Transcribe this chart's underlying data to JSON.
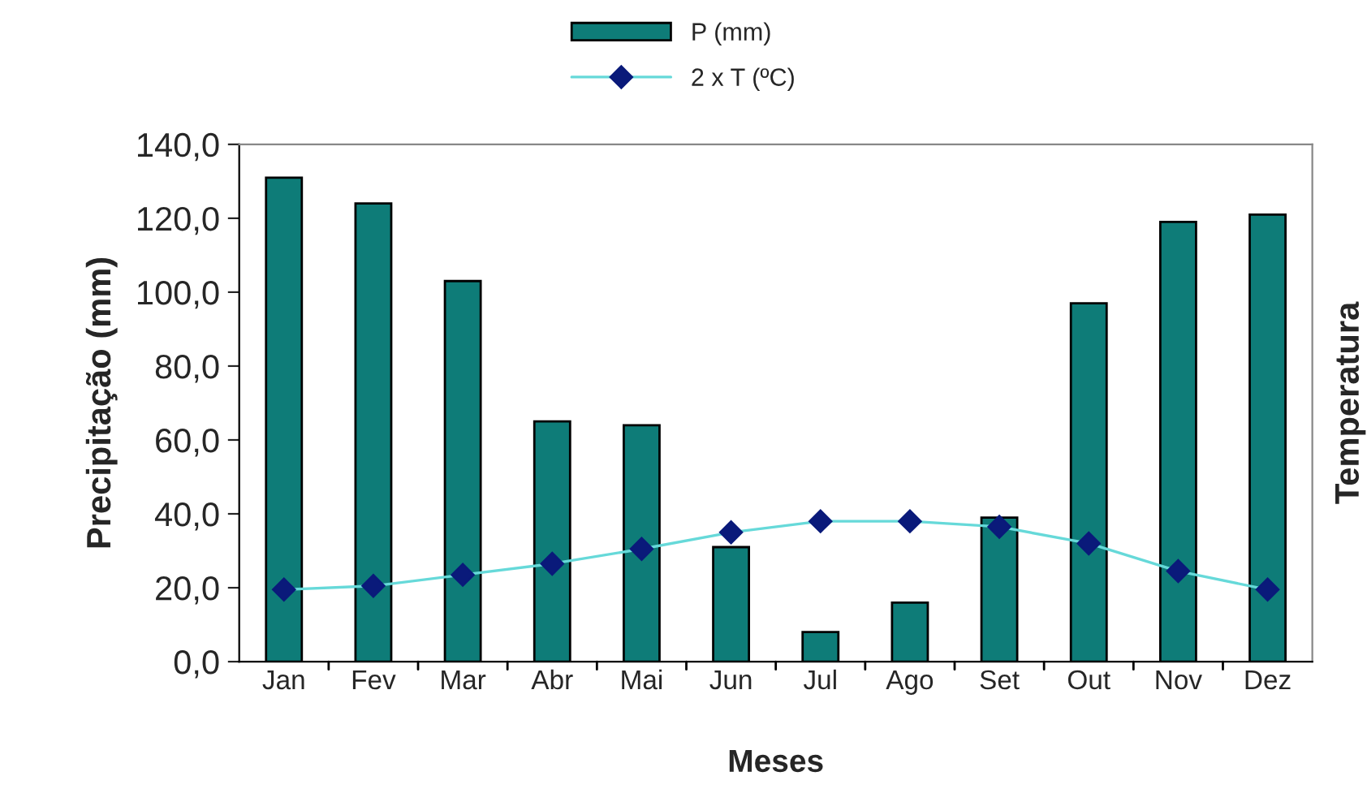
{
  "chart_data": {
    "type": "bar",
    "xlabel": "Meses",
    "ylabel": "Precipitação (mm)",
    "y2label": "Temperatura",
    "categories": [
      "Jan",
      "Fev",
      "Mar",
      "Abr",
      "Mai",
      "Jun",
      "Jul",
      "Ago",
      "Set",
      "Out",
      "Nov",
      "Dez"
    ],
    "series": [
      {
        "name": "P (mm)",
        "color": "#0e7c78",
        "values": [
          131,
          124,
          103,
          65,
          64,
          31,
          8,
          16,
          39,
          97,
          119,
          121
        ]
      },
      {
        "name": "2 x T (ºC)",
        "type": "line",
        "color": "#66d9d9",
        "marker": "diamond",
        "values": [
          19.5,
          20.5,
          23.5,
          26.5,
          30.5,
          35,
          38,
          38,
          36.5,
          32,
          24.5,
          19.5
        ]
      }
    ],
    "ylim": [
      0,
      140
    ],
    "yticks": [
      {
        "value": 0,
        "label": "0,0"
      },
      {
        "value": 20,
        "label": "20,0"
      },
      {
        "value": 40,
        "label": "40,0"
      },
      {
        "value": 60,
        "label": "60,0"
      },
      {
        "value": 80,
        "label": "80,0"
      },
      {
        "value": 100,
        "label": "100,0"
      },
      {
        "value": 120,
        "label": "120,0"
      },
      {
        "value": 140,
        "label": "140,0"
      }
    ],
    "grid": false,
    "legend": "top"
  }
}
